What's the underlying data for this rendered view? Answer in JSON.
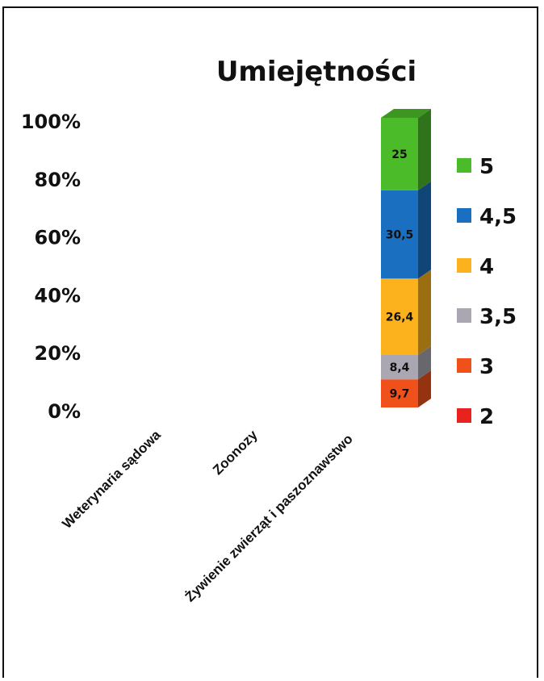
{
  "chart_data": {
    "type": "bar",
    "stacked": true,
    "percent_stacked": true,
    "three_d": true,
    "title": "Umiejętności",
    "xlabel": "",
    "ylabel": "",
    "y_ticks": [
      "0%",
      "20%",
      "40%",
      "60%",
      "80%",
      "100%"
    ],
    "ylim": [
      0,
      100
    ],
    "categories": [
      "Weterynaria sądowa",
      "Zoonozy",
      "Żywienie zwierząt i paszoznawstwo"
    ],
    "series": [
      {
        "name": "2",
        "color": "#e8231f",
        "values": [
          null,
          null,
          0
        ]
      },
      {
        "name": "3",
        "color": "#f0501a",
        "values": [
          null,
          null,
          9.7
        ]
      },
      {
        "name": "3,5",
        "color": "#aaa6b2",
        "values": [
          null,
          null,
          8.4
        ]
      },
      {
        "name": "4",
        "color": "#fbb21d",
        "values": [
          null,
          null,
          26.4
        ]
      },
      {
        "name": "4,5",
        "color": "#1a6fc0",
        "values": [
          null,
          null,
          30.5
        ]
      },
      {
        "name": "5",
        "color": "#4cbb2a",
        "values": [
          null,
          null,
          25
        ]
      }
    ],
    "data_labels": [
      "",
      "9,7",
      "8,4",
      "26,4",
      "30,5",
      "25"
    ],
    "legend": [
      "5",
      "4,5",
      "4",
      "3,5",
      "3",
      "2"
    ],
    "legend_position": "right",
    "grid": false
  }
}
